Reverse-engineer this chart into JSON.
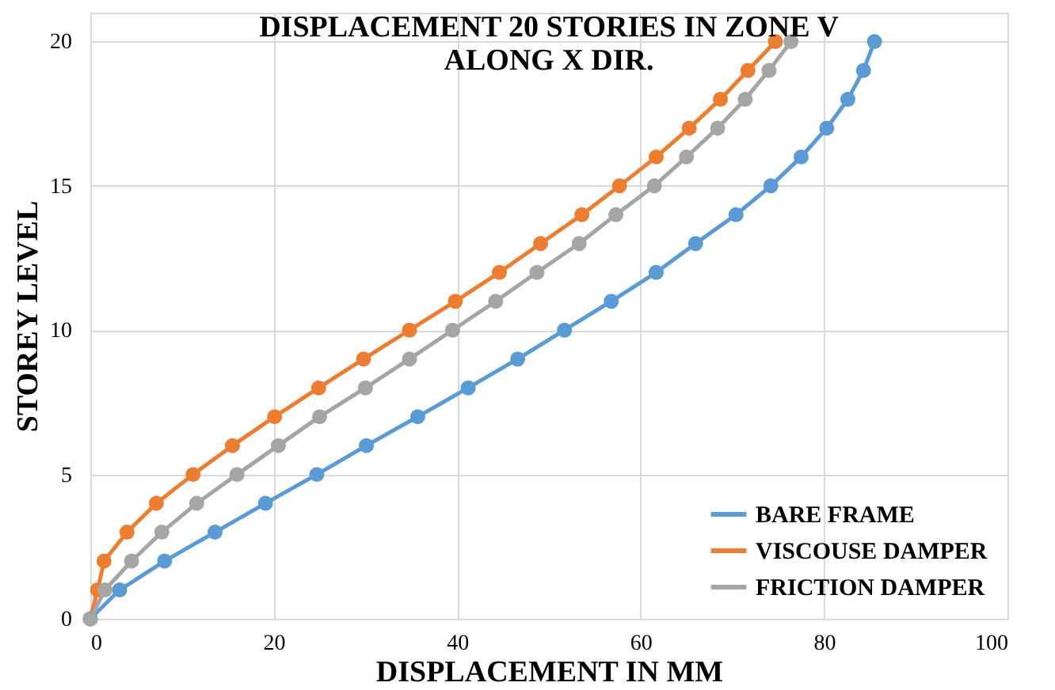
{
  "chart_data": {
    "type": "line",
    "title": "DISPLACEMENT 20 STORIES IN ZONE V\nALONG X DIR.",
    "xlabel": "DISPLACEMENT IN MM",
    "ylabel": "STOREY LEVEL",
    "xlim": [
      0,
      100
    ],
    "xticks": [
      0,
      20,
      40,
      60,
      80,
      100
    ],
    "ylim": [
      0,
      21
    ],
    "yticks": [
      0,
      5,
      10,
      15,
      20
    ],
    "grid": true,
    "legend": "bottom right",
    "marker": "circle",
    "line_style": "solid",
    "series": [
      {
        "name": "BARE FRAME",
        "color": "#5b9bd5",
        "x": [
          0,
          3.2,
          8.1,
          13.6,
          19.1,
          24.7,
          30.1,
          35.7,
          41.2,
          46.6,
          51.7,
          56.8,
          61.7,
          66.0,
          70.4,
          74.2,
          77.5,
          80.3,
          82.6,
          84.3,
          85.5
        ],
        "values": [
          0,
          1,
          2,
          3,
          4,
          5,
          6,
          7,
          8,
          9,
          10,
          11,
          12,
          13,
          14,
          15,
          16,
          17,
          18,
          19,
          20
        ]
      },
      {
        "name": "VISCOUSE DAMPER",
        "color": "#ed7d31",
        "x": [
          0,
          0.8,
          1.5,
          4.0,
          7.2,
          11.2,
          15.5,
          20.1,
          24.9,
          29.8,
          34.8,
          39.8,
          44.6,
          49.1,
          53.6,
          57.7,
          61.7,
          65.3,
          68.7,
          71.7,
          74.7
        ],
        "values": [
          0,
          1,
          2,
          3,
          4,
          5,
          6,
          7,
          8,
          9,
          10,
          11,
          12,
          13,
          14,
          15,
          16,
          17,
          18,
          19,
          20
        ]
      },
      {
        "name": "FRICTION DAMPER",
        "color": "#a5a5a5",
        "x": [
          0,
          1.6,
          4.5,
          7.8,
          11.6,
          16.0,
          20.5,
          25.0,
          30.0,
          34.8,
          39.5,
          44.2,
          48.7,
          53.3,
          57.3,
          61.5,
          65.0,
          68.4,
          71.4,
          74.0,
          76.4
        ],
        "values": [
          0,
          1,
          2,
          3,
          4,
          5,
          6,
          7,
          8,
          9,
          10,
          11,
          12,
          13,
          14,
          15,
          16,
          17,
          18,
          19,
          20
        ]
      }
    ]
  }
}
